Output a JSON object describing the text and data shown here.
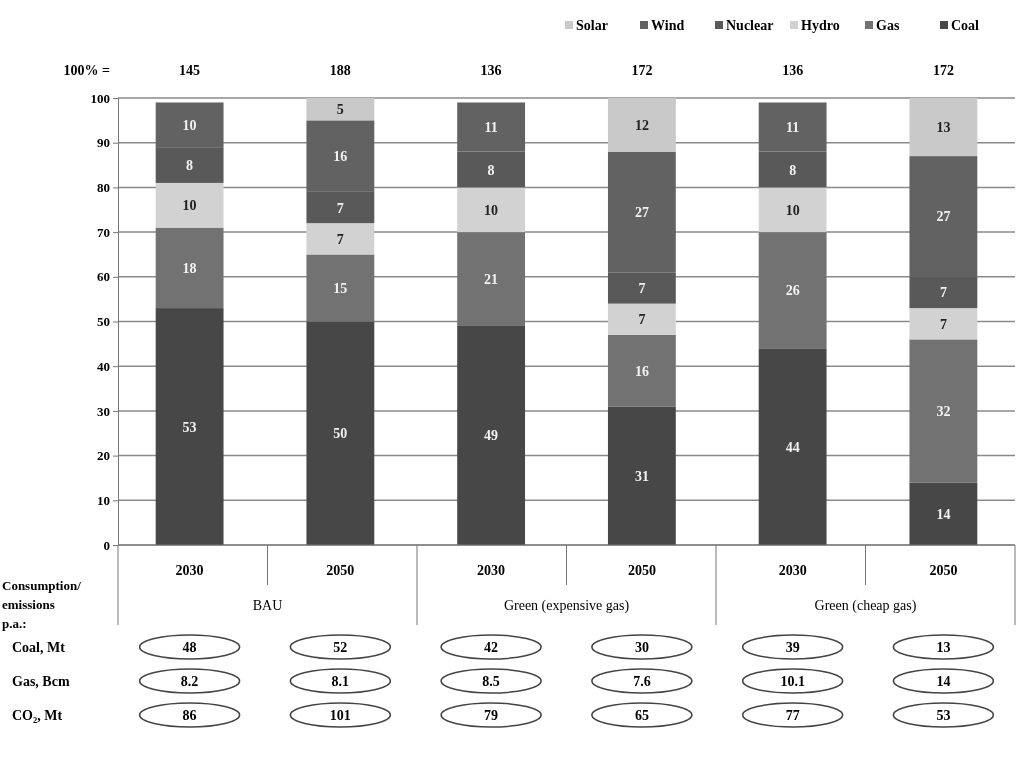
{
  "chart_data": {
    "type": "bar",
    "stacked": true,
    "categories": [
      "2030",
      "2050",
      "2030",
      "2050",
      "2030",
      "2050"
    ],
    "series": [
      {
        "name": "Coal",
        "color": "#474747",
        "values": [
          53,
          50,
          49,
          31,
          44,
          14
        ]
      },
      {
        "name": "Gas",
        "color": "#727272",
        "values": [
          18,
          15,
          21,
          16,
          26,
          32
        ]
      },
      {
        "name": "Hydro",
        "color": "#d2d2d2",
        "values": [
          10,
          7,
          10,
          7,
          10,
          7
        ]
      },
      {
        "name": "Nuclear",
        "color": "#595959",
        "values": [
          8,
          7,
          8,
          7,
          8,
          7
        ]
      },
      {
        "name": "Wind",
        "color": "#626262",
        "values": [
          10,
          16,
          11,
          27,
          11,
          27
        ]
      },
      {
        "name": "Solar",
        "color": "#c9c9c9",
        "values": [
          null,
          5,
          null,
          12,
          null,
          13
        ]
      }
    ],
    "ylim": [
      0,
      100
    ],
    "yticks": [
      0,
      10,
      20,
      30,
      40,
      50,
      60,
      70,
      80,
      90,
      100
    ],
    "grid": "y",
    "legend": "top right",
    "data_labels": true,
    "annotations": [
      "100% =",
      "145",
      "188",
      "136",
      "172",
      "136",
      "172",
      "BAU",
      "Green (expensive gas)",
      "Green (cheap gas)",
      "Consumption/ emissions p.a.:",
      "Coal, Mt",
      "Gas, Bcm",
      "CO₂, Mt",
      "48",
      "52",
      "42",
      "30",
      "39",
      "13",
      "8.2",
      "8.1",
      "8.5",
      "7.6",
      "10.1",
      "14",
      "86",
      "101",
      "79",
      "65",
      "77",
      "53"
    ]
  }
}
